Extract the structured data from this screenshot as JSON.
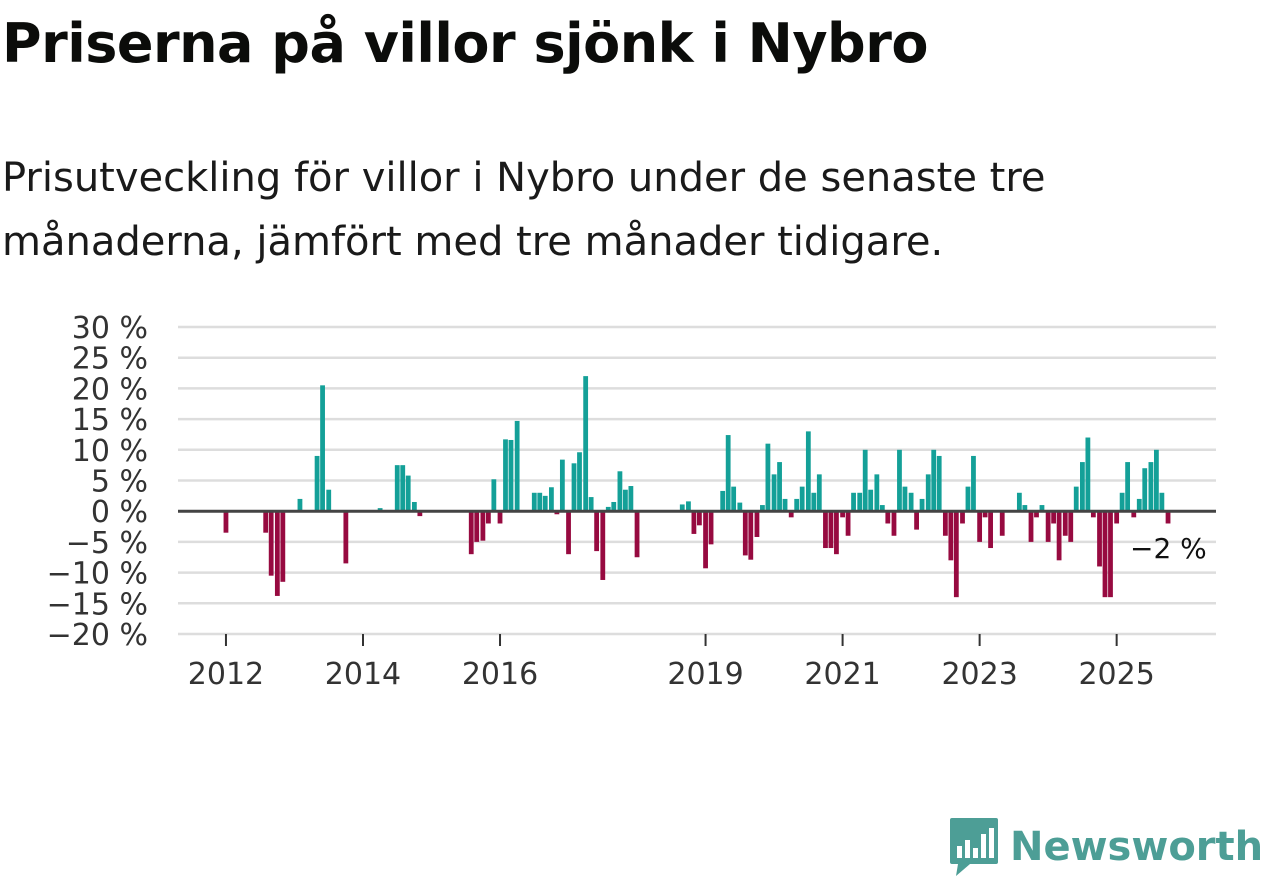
{
  "title": "Priserna på villor sjönk i Nybro",
  "subtitle": "Prisutveckling för villor i Nybro under de senaste tre månaderna, jämfört med tre månader tidigare.",
  "brand": {
    "name": "Newsworthy",
    "color": "#4d9e96",
    "icon": "bar-chart-speech-bubble-icon"
  },
  "colors": {
    "positive": "#14a098",
    "negative": "#970a40",
    "grid": "#dddddd",
    "zero": "#444444"
  },
  "chart_data": {
    "type": "bar",
    "title": "Priserna på villor sjönk i Nybro",
    "ylim": [
      -20,
      30
    ],
    "yticks": [
      30,
      25,
      20,
      15,
      10,
      5,
      0,
      -5,
      -10,
      -15,
      -20
    ],
    "ytick_labels": [
      "30 %",
      "25 %",
      "20 %",
      "15 %",
      "10 %",
      "5 %",
      "0 %",
      "−5 %",
      "−10 %",
      "−15 %",
      "−20 %"
    ],
    "xlim": [
      2011.3,
      2026.45
    ],
    "xticks": [
      2012,
      2014,
      2016,
      2019,
      2021,
      2023,
      2025
    ],
    "xtick_labels": [
      "2012",
      "2014",
      "2016",
      "2019",
      "2021",
      "2023",
      "2025"
    ],
    "annotation": "−2 %",
    "bar_width_years": 0.07,
    "series": [
      {
        "x": 2012.0,
        "y": -3.5
      },
      {
        "x": 2012.58,
        "y": -3.5
      },
      {
        "x": 2012.66,
        "y": -10.5
      },
      {
        "x": 2012.75,
        "y": -13.8
      },
      {
        "x": 2012.83,
        "y": -11.5
      },
      {
        "x": 2013.08,
        "y": 2.0
      },
      {
        "x": 2013.33,
        "y": 9.0
      },
      {
        "x": 2013.41,
        "y": 20.5
      },
      {
        "x": 2013.5,
        "y": 3.5
      },
      {
        "x": 2013.75,
        "y": -8.5
      },
      {
        "x": 2014.25,
        "y": 0.5
      },
      {
        "x": 2014.5,
        "y": 7.5
      },
      {
        "x": 2014.58,
        "y": 7.5
      },
      {
        "x": 2014.66,
        "y": 5.8
      },
      {
        "x": 2014.75,
        "y": 1.5
      },
      {
        "x": 2014.83,
        "y": -0.8
      },
      {
        "x": 2015.58,
        "y": -7.0
      },
      {
        "x": 2015.66,
        "y": -5.0
      },
      {
        "x": 2015.75,
        "y": -4.8
      },
      {
        "x": 2015.83,
        "y": -2.0
      },
      {
        "x": 2015.91,
        "y": 5.2
      },
      {
        "x": 2016.0,
        "y": -2.0
      },
      {
        "x": 2016.08,
        "y": 11.7
      },
      {
        "x": 2016.16,
        "y": 11.6
      },
      {
        "x": 2016.25,
        "y": 14.7
      },
      {
        "x": 2016.5,
        "y": 3.0
      },
      {
        "x": 2016.58,
        "y": 3.0
      },
      {
        "x": 2016.66,
        "y": 2.5
      },
      {
        "x": 2016.75,
        "y": 3.9
      },
      {
        "x": 2016.83,
        "y": -0.5
      },
      {
        "x": 2016.91,
        "y": 8.4
      },
      {
        "x": 2017.0,
        "y": -7.0
      },
      {
        "x": 2017.08,
        "y": 7.8
      },
      {
        "x": 2017.16,
        "y": 9.6
      },
      {
        "x": 2017.25,
        "y": 22.0
      },
      {
        "x": 2017.33,
        "y": 2.3
      },
      {
        "x": 2017.41,
        "y": -6.5
      },
      {
        "x": 2017.5,
        "y": -11.2
      },
      {
        "x": 2017.58,
        "y": 0.7
      },
      {
        "x": 2017.66,
        "y": 1.5
      },
      {
        "x": 2017.75,
        "y": 6.5
      },
      {
        "x": 2017.83,
        "y": 3.5
      },
      {
        "x": 2017.91,
        "y": 4.1
      },
      {
        "x": 2018.0,
        "y": -7.5
      },
      {
        "x": 2018.66,
        "y": 1.1
      },
      {
        "x": 2018.75,
        "y": 1.6
      },
      {
        "x": 2018.83,
        "y": -3.7
      },
      {
        "x": 2018.91,
        "y": -2.3
      },
      {
        "x": 2019.0,
        "y": -9.3
      },
      {
        "x": 2019.08,
        "y": -5.4
      },
      {
        "x": 2019.25,
        "y": 3.3
      },
      {
        "x": 2019.33,
        "y": 12.4
      },
      {
        "x": 2019.41,
        "y": 4.0
      },
      {
        "x": 2019.5,
        "y": 1.4
      },
      {
        "x": 2019.58,
        "y": -7.2
      },
      {
        "x": 2019.66,
        "y": -7.9
      },
      {
        "x": 2019.75,
        "y": -4.2
      },
      {
        "x": 2019.83,
        "y": 1.0
      },
      {
        "x": 2019.91,
        "y": 11.0
      },
      {
        "x": 2020.0,
        "y": 6.0
      },
      {
        "x": 2020.08,
        "y": 8.0
      },
      {
        "x": 2020.16,
        "y": 2.0
      },
      {
        "x": 2020.25,
        "y": -1.0
      },
      {
        "x": 2020.33,
        "y": 2.0
      },
      {
        "x": 2020.41,
        "y": 4.0
      },
      {
        "x": 2020.5,
        "y": 13.0
      },
      {
        "x": 2020.58,
        "y": 3.0
      },
      {
        "x": 2020.66,
        "y": 6.0
      },
      {
        "x": 2020.75,
        "y": -6.0
      },
      {
        "x": 2020.83,
        "y": -6.0
      },
      {
        "x": 2020.91,
        "y": -7.0
      },
      {
        "x": 2021.0,
        "y": -1.0
      },
      {
        "x": 2021.08,
        "y": -4.0
      },
      {
        "x": 2021.16,
        "y": 3.0
      },
      {
        "x": 2021.25,
        "y": 3.0
      },
      {
        "x": 2021.33,
        "y": 10.0
      },
      {
        "x": 2021.41,
        "y": 3.5
      },
      {
        "x": 2021.5,
        "y": 6.0
      },
      {
        "x": 2021.58,
        "y": 1.0
      },
      {
        "x": 2021.66,
        "y": -2.0
      },
      {
        "x": 2021.75,
        "y": -4.0
      },
      {
        "x": 2021.83,
        "y": 10.0
      },
      {
        "x": 2021.91,
        "y": 4.0
      },
      {
        "x": 2022.0,
        "y": 3.0
      },
      {
        "x": 2022.08,
        "y": -3.0
      },
      {
        "x": 2022.16,
        "y": 2.0
      },
      {
        "x": 2022.25,
        "y": 6.0
      },
      {
        "x": 2022.33,
        "y": 10.0
      },
      {
        "x": 2022.41,
        "y": 9.0
      },
      {
        "x": 2022.5,
        "y": -4.0
      },
      {
        "x": 2022.58,
        "y": -8.0
      },
      {
        "x": 2022.66,
        "y": -14.0
      },
      {
        "x": 2022.75,
        "y": -2.0
      },
      {
        "x": 2022.83,
        "y": 4.0
      },
      {
        "x": 2022.91,
        "y": 9.0
      },
      {
        "x": 2023.0,
        "y": -5.0
      },
      {
        "x": 2023.08,
        "y": -1.0
      },
      {
        "x": 2023.16,
        "y": -6.0
      },
      {
        "x": 2023.33,
        "y": -4.0
      },
      {
        "x": 2023.58,
        "y": 3.0
      },
      {
        "x": 2023.66,
        "y": 1.0
      },
      {
        "x": 2023.75,
        "y": -5.0
      },
      {
        "x": 2023.83,
        "y": -1.0
      },
      {
        "x": 2023.91,
        "y": 1.0
      },
      {
        "x": 2024.0,
        "y": -5.0
      },
      {
        "x": 2024.08,
        "y": -2.0
      },
      {
        "x": 2024.16,
        "y": -8.0
      },
      {
        "x": 2024.25,
        "y": -4.0
      },
      {
        "x": 2024.33,
        "y": -5.0
      },
      {
        "x": 2024.41,
        "y": 4.0
      },
      {
        "x": 2024.5,
        "y": 8.0
      },
      {
        "x": 2024.58,
        "y": 12.0
      },
      {
        "x": 2024.66,
        "y": -1.0
      },
      {
        "x": 2024.75,
        "y": -9.0
      },
      {
        "x": 2024.83,
        "y": -14.0
      },
      {
        "x": 2024.91,
        "y": -14.0
      },
      {
        "x": 2025.0,
        "y": -2.0
      },
      {
        "x": 2025.08,
        "y": 3.0
      },
      {
        "x": 2025.16,
        "y": 8.0
      },
      {
        "x": 2025.25,
        "y": -1.0
      },
      {
        "x": 2025.33,
        "y": 2.0
      },
      {
        "x": 2025.41,
        "y": 7.0
      },
      {
        "x": 2025.5,
        "y": 8.0
      },
      {
        "x": 2025.58,
        "y": 10.0
      },
      {
        "x": 2025.66,
        "y": 3.0
      },
      {
        "x": 2025.75,
        "y": -2.0
      }
    ]
  }
}
